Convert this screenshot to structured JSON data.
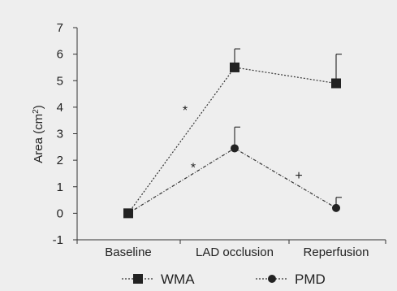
{
  "chart_data": {
    "type": "line",
    "categories": [
      "Baseline",
      "LAD occlusion",
      "Reperfusion"
    ],
    "ylabel_main": "Area (cm",
    "ylabel_sup": "2",
    "ylabel_close": ")",
    "xlabel": "",
    "ylim": [
      -1,
      7
    ],
    "yticks": [
      "-1",
      "0",
      "1",
      "2",
      "3",
      "4",
      "5",
      "6",
      "7"
    ],
    "grid": false,
    "legend_position": "bottom",
    "series": [
      {
        "name": "WMA",
        "marker": "square",
        "values": [
          0,
          5.5,
          4.9
        ],
        "error_upper": [
          0,
          6.2,
          6.0
        ]
      },
      {
        "name": "PMD",
        "marker": "circle",
        "values": [
          0,
          2.45,
          0.2
        ],
        "error_upper": [
          0,
          3.25,
          0.6
        ]
      }
    ],
    "annotations": [
      {
        "text": "*",
        "between": [
          0,
          1
        ],
        "y": 3.9
      },
      {
        "text": "*",
        "between": [
          0,
          1
        ],
        "y": 1.75
      },
      {
        "text": "+",
        "between": [
          1,
          2
        ],
        "y": 1.45
      }
    ]
  }
}
